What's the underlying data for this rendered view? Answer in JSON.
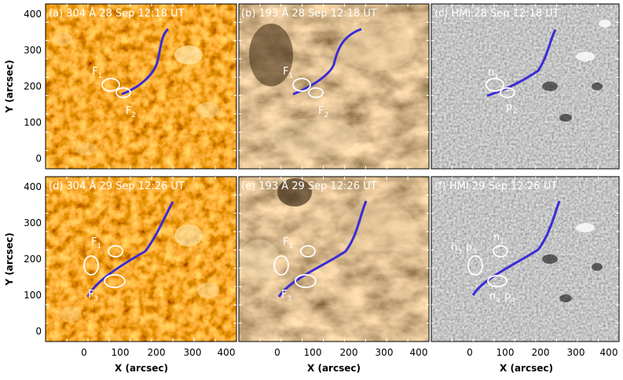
{
  "panels": {
    "a": {
      "title": "(a) 304 Å 28 Sep 12:18 UT"
    },
    "b": {
      "title": "(b) 193 Å 28 Sep 12:18 UT"
    },
    "c": {
      "title": "(c) HMI 28 Sep 12:18 UT"
    },
    "d": {
      "title": "(d) 304 Å 29 Sep 12:26 UT"
    },
    "e": {
      "title": "(e) 193 Å 29 Sep 12:26 UT"
    },
    "f": {
      "title": "(f) HMI 29 Sep 12:26 UT"
    }
  },
  "axes": {
    "ylabel": "Y (arcsec)",
    "xlabel": "X (arcsec)",
    "yticks": [
      "0",
      "100",
      "200",
      "300",
      "400"
    ],
    "xticks": [
      "0",
      "100",
      "200",
      "300",
      "400"
    ]
  },
  "labels": {
    "F": "F",
    "n": "n",
    "p": "p",
    "sub1": "1",
    "sub2": "2",
    "sub3": "3",
    "sub4": "4"
  },
  "colors": {
    "aia304_bg": "#b84a0c",
    "aia193_bg": "#a07a45",
    "hmi_bg": "#8a8a8a",
    "filament_line": "#3a2bd8",
    "ellipse": "#ffffff"
  }
}
